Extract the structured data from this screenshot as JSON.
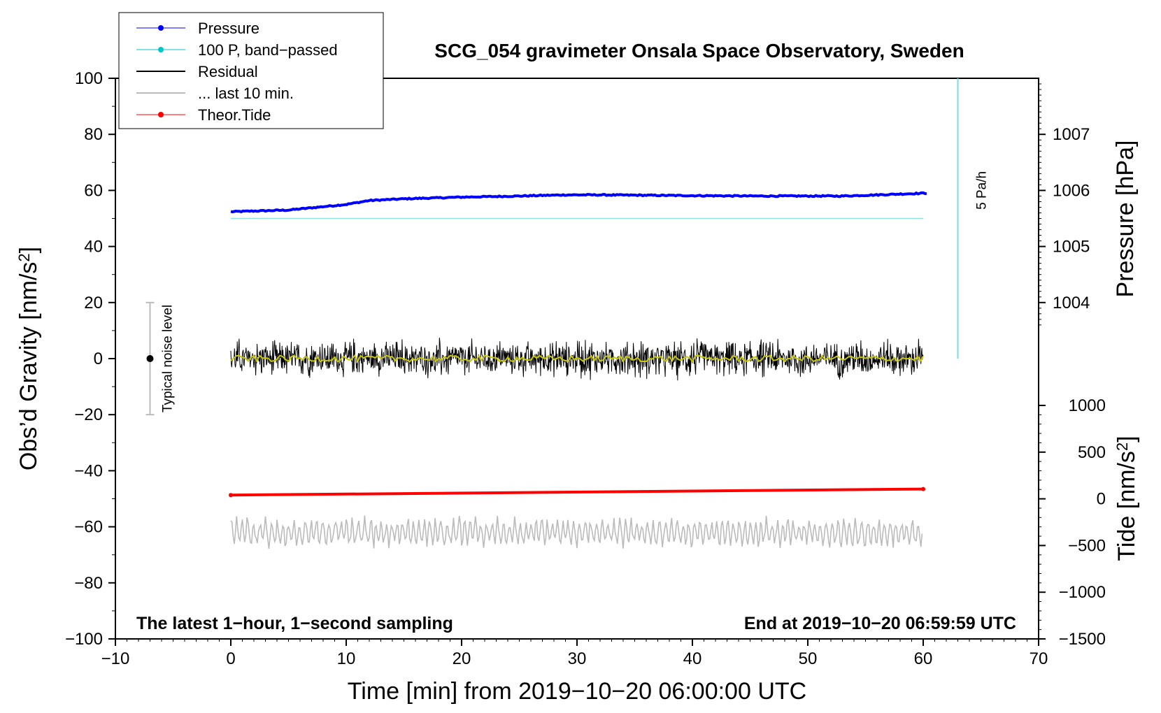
{
  "chart_data": {
    "type": "line",
    "title": "SCG_054 gravimeter Onsala Space Observatory, Sweden",
    "xlabel": "Time [min] from 2019−10−20 06:00:00 UTC",
    "ylabel_left": "Obs’d Gravity [nm/s2]",
    "ylabel_left_base": "Obs’d Gravity [nm/s",
    "ylabel_right_pressure_base": "Pressure [hPa]",
    "ylabel_right_tide_base": "Tide [nm/s",
    "xlim": [
      -10,
      70
    ],
    "ylim": [
      -100,
      100
    ],
    "pressure_axis": {
      "ticks": [
        1004,
        1005,
        1006,
        1007
      ],
      "ylim_gravity_equiv": [
        0,
        100
      ]
    },
    "tide_axis": {
      "ticks": [
        -1500,
        -1000,
        -500,
        0,
        500,
        1000
      ],
      "range": [
        -1500,
        1000
      ]
    },
    "x_ticks": [
      -10,
      0,
      10,
      20,
      30,
      40,
      50,
      60,
      70
    ],
    "x_tick_labels": [
      "−10",
      "0",
      "10",
      "20",
      "30",
      "40",
      "50",
      "60",
      "70"
    ],
    "y_ticks": [
      -100,
      -80,
      -60,
      -40,
      -20,
      0,
      20,
      40,
      60,
      80,
      100
    ],
    "y_tick_labels": [
      "−100",
      "−80",
      "−60",
      "−40",
      "−20",
      "0",
      "20",
      "40",
      "60",
      "80",
      "100"
    ],
    "pressure_tick_labels": [
      "1004",
      "1005",
      "1006",
      "1007"
    ],
    "tide_tick_labels": [
      "−1500",
      "−1000",
      "−500",
      "0",
      "500",
      "1000"
    ],
    "legend": {
      "placement": "top-left",
      "entries": [
        {
          "label": "Pressure",
          "color": "#0000ff",
          "marker": true
        },
        {
          "label": "100 P, band−passed",
          "color": "#00c8c8",
          "marker": true
        },
        {
          "label": "Residual",
          "color": "#000000",
          "marker": false
        },
        {
          "label": "... last 10 min.",
          "color": "#bbbbbb",
          "marker": false
        },
        {
          "label": "Theor.Tide",
          "color": "#ff0000",
          "marker": true
        }
      ]
    },
    "series": [
      {
        "name": "Pressure",
        "color": "#0000ff",
        "unit": "hPa",
        "x": [
          0,
          5,
          10,
          12,
          15,
          20,
          25,
          29,
          32,
          38,
          45,
          50,
          53,
          56,
          60
        ],
        "y": [
          1005.62,
          1005.65,
          1005.75,
          1005.82,
          1005.85,
          1005.88,
          1005.9,
          1005.92,
          1005.92,
          1005.91,
          1005.9,
          1005.9,
          1005.9,
          1005.92,
          1005.95
        ]
      },
      {
        "name": "100 P, band−passed",
        "color": "#00c8c8",
        "unit": "nm/s2",
        "x": [
          0,
          60
        ],
        "y": [
          50,
          50
        ]
      },
      {
        "name": "Residual",
        "color": "#000000",
        "unit": "nm/s2",
        "x_range": [
          0,
          60
        ],
        "y_center": 0,
        "y_amplitude": 8
      },
      {
        "name": "... last 10 min.",
        "color": "#bbbbbb",
        "unit": "nm/s2",
        "x_range": [
          0,
          60
        ],
        "y_center": -62,
        "y_amplitude": 6
      },
      {
        "name": "Theor.Tide",
        "color": "#ff0000",
        "unit": "nm/s2",
        "x": [
          0,
          60
        ],
        "y": [
          40,
          105
        ]
      }
    ],
    "smoothed_residual_color": "#c8c800",
    "noise_bar": {
      "x": -7,
      "y_center": 0,
      "y_range": [
        -20,
        20
      ],
      "label": "Typical noise level"
    },
    "rate_bar": {
      "x": 63,
      "y_range": [
        0,
        100
      ],
      "label": "5 Pa/h"
    },
    "annotations": {
      "bottom_left": "The latest 1−hour, 1−second sampling",
      "bottom_right": "End at 2019−10−20 06:59:59 UTC"
    }
  }
}
